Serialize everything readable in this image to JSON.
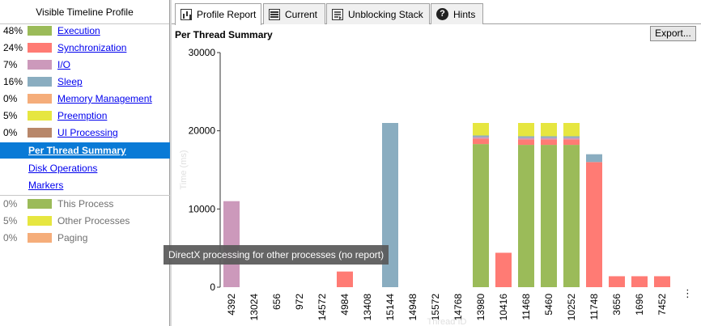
{
  "left_panel": {
    "title": "Visible Timeline Profile",
    "categories": [
      {
        "pct": "48%",
        "label": "Execution",
        "color": "#9bbb59"
      },
      {
        "pct": "24%",
        "label": "Synchronization",
        "color": "#ff7b74"
      },
      {
        "pct": "7%",
        "label": "I/O",
        "color": "#cc99bb"
      },
      {
        "pct": "16%",
        "label": "Sleep",
        "color": "#8aadc0"
      },
      {
        "pct": "0%",
        "label": "Memory Management",
        "color": "#f5ad7a"
      },
      {
        "pct": "5%",
        "label": "Preemption",
        "color": "#e6e640"
      },
      {
        "pct": "0%",
        "label": "UI Processing",
        "color": "#b8876a"
      }
    ],
    "nav": [
      {
        "label": "Per Thread Summary",
        "active": true
      },
      {
        "label": "Disk Operations",
        "active": false
      },
      {
        "label": "Markers",
        "active": false
      }
    ],
    "processes": [
      {
        "pct": "0%",
        "label": "This Process",
        "color": "#9bbb59"
      },
      {
        "pct": "5%",
        "label": "Other Processes",
        "color": "#e6e640"
      },
      {
        "pct": "0%",
        "label": "Paging",
        "color": "#f5ad7a"
      }
    ]
  },
  "tabs": [
    {
      "label": "Profile Report",
      "icon": "report-icon",
      "active": true
    },
    {
      "label": "Current",
      "icon": "current-stack-icon",
      "active": false
    },
    {
      "label": "Unblocking Stack",
      "icon": "unblocking-stack-icon",
      "active": false
    },
    {
      "label": "Hints",
      "icon": "help-icon",
      "active": false
    }
  ],
  "main": {
    "title": "Per Thread Summary",
    "export_label": "Export...",
    "more_label": "⋮",
    "tooltip": "DirectX processing for other processes (no report)"
  },
  "chart_data": {
    "type": "bar",
    "stacked": true,
    "xlabel": "Thread ID",
    "ylabel": "Time (ms)",
    "ylim": [
      0,
      30000
    ],
    "yticks": [
      0,
      10000,
      20000,
      30000
    ],
    "categories": [
      "4392",
      "13024",
      "656",
      "972",
      "14572",
      "4984",
      "13408",
      "15144",
      "14948",
      "15572",
      "14768",
      "13980",
      "10416",
      "11468",
      "5460",
      "10252",
      "11748",
      "3656",
      "1696",
      "7452"
    ],
    "series": [
      {
        "name": "Execution",
        "color": "#9bbb59",
        "values": [
          0,
          0,
          0,
          0,
          0,
          0,
          0,
          0,
          0,
          0,
          0,
          18300,
          0,
          18200,
          18200,
          18200,
          0,
          0,
          0,
          0
        ]
      },
      {
        "name": "Synchronization",
        "color": "#ff7b74",
        "values": [
          0,
          0,
          0,
          0,
          0,
          2000,
          0,
          0,
          0,
          0,
          0,
          700,
          4400,
          700,
          700,
          700,
          16000,
          1400,
          1400,
          1400
        ]
      },
      {
        "name": "I/O",
        "color": "#cc99bb",
        "values": [
          11000,
          0,
          0,
          0,
          0,
          0,
          0,
          0,
          0,
          0,
          0,
          200,
          0,
          200,
          200,
          200,
          0,
          0,
          0,
          0
        ]
      },
      {
        "name": "Sleep",
        "color": "#8aadc0",
        "values": [
          0,
          0,
          0,
          0,
          0,
          0,
          0,
          21000,
          0,
          0,
          0,
          200,
          0,
          200,
          200,
          200,
          1000,
          0,
          0,
          0
        ]
      },
      {
        "name": "Preemption",
        "color": "#e6e640",
        "values": [
          0,
          0,
          0,
          0,
          0,
          0,
          0,
          0,
          0,
          0,
          0,
          1600,
          0,
          1700,
          1700,
          1700,
          0,
          0,
          0,
          0
        ]
      }
    ]
  }
}
